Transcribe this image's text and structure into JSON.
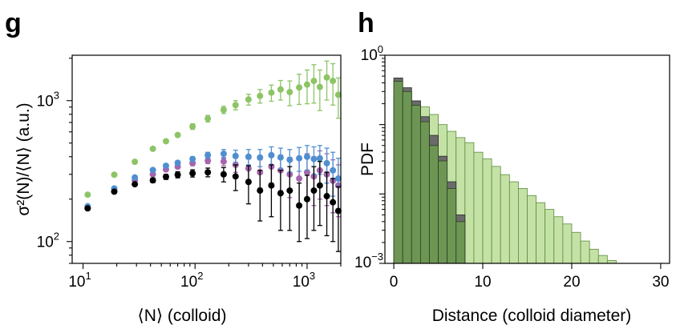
{
  "panels": {
    "g": {
      "letter": "g"
    },
    "h": {
      "letter": "h"
    }
  },
  "chart_data": [
    {
      "panel": "g",
      "type": "scatter",
      "xlabel": "⟨N⟩ (colloid)",
      "ylabel": "σ²(N)/⟨N⟩ (a.u.)",
      "xscale": "log",
      "yscale": "log",
      "xlim": [
        8,
        2000
      ],
      "ylim": [
        70,
        2100
      ],
      "x_ticks": [
        {
          "value": 10,
          "mantissa": "10",
          "exponent": "1"
        },
        {
          "value": 100,
          "mantissa": "10",
          "exponent": "2"
        },
        {
          "value": 1000,
          "mantissa": "10",
          "exponent": "3"
        }
      ],
      "y_ticks": [
        {
          "value": 100,
          "mantissa": "10",
          "exponent": "2"
        },
        {
          "value": 1000,
          "mantissa": "10",
          "exponent": "3"
        }
      ],
      "grid": false,
      "series": [
        {
          "color": "#8dc466",
          "points": [
            {
              "x": 11,
              "y": 215,
              "err": 0
            },
            {
              "x": 19,
              "y": 298,
              "err": 0
            },
            {
              "x": 29,
              "y": 368,
              "err": 0
            },
            {
              "x": 42,
              "y": 455,
              "err": 0
            },
            {
              "x": 55,
              "y": 515,
              "err": 0
            },
            {
              "x": 70,
              "y": 570,
              "err": 0
            },
            {
              "x": 95,
              "y": 655,
              "err": 30
            },
            {
              "x": 130,
              "y": 745,
              "err": 40
            },
            {
              "x": 180,
              "y": 860,
              "err": 50
            },
            {
              "x": 230,
              "y": 930,
              "err": 70
            },
            {
              "x": 300,
              "y": 1020,
              "err": 90
            },
            {
              "x": 380,
              "y": 1080,
              "err": 120
            },
            {
              "x": 480,
              "y": 1140,
              "err": 150
            },
            {
              "x": 580,
              "y": 1200,
              "err": 190
            },
            {
              "x": 700,
              "y": 1150,
              "err": 230
            },
            {
              "x": 850,
              "y": 1240,
              "err": 300
            },
            {
              "x": 1000,
              "y": 1300,
              "err": 350
            },
            {
              "x": 1150,
              "y": 1380,
              "err": 420
            },
            {
              "x": 1300,
              "y": 1250,
              "err": 400
            },
            {
              "x": 1500,
              "y": 1460,
              "err": 450
            },
            {
              "x": 1700,
              "y": 1380,
              "err": 450
            },
            {
              "x": 1900,
              "y": 1100,
              "err": 350
            }
          ]
        },
        {
          "color": "#a566ad",
          "points": [
            {
              "x": 11,
              "y": 173,
              "err": 0
            },
            {
              "x": 19,
              "y": 228,
              "err": 0
            },
            {
              "x": 29,
              "y": 272,
              "err": 0
            },
            {
              "x": 42,
              "y": 300,
              "err": 0
            },
            {
              "x": 55,
              "y": 325,
              "err": 10
            },
            {
              "x": 70,
              "y": 340,
              "err": 12
            },
            {
              "x": 95,
              "y": 360,
              "err": 15
            },
            {
              "x": 130,
              "y": 375,
              "err": 18
            },
            {
              "x": 180,
              "y": 370,
              "err": 25
            },
            {
              "x": 230,
              "y": 350,
              "err": 40
            },
            {
              "x": 300,
              "y": 330,
              "err": 55
            },
            {
              "x": 380,
              "y": 310,
              "err": 70
            },
            {
              "x": 480,
              "y": 340,
              "err": 80
            },
            {
              "x": 580,
              "y": 320,
              "err": 90
            },
            {
              "x": 700,
              "y": 300,
              "err": 95
            },
            {
              "x": 850,
              "y": 280,
              "err": 100
            },
            {
              "x": 1000,
              "y": 310,
              "err": 110
            },
            {
              "x": 1150,
              "y": 290,
              "err": 110
            },
            {
              "x": 1300,
              "y": 320,
              "err": 120
            },
            {
              "x": 1500,
              "y": 300,
              "err": 120
            },
            {
              "x": 1700,
              "y": 270,
              "err": 110
            },
            {
              "x": 1900,
              "y": 250,
              "err": 100
            }
          ]
        },
        {
          "color": "#4f8fd0",
          "points": [
            {
              "x": 11,
              "y": 178,
              "err": 0
            },
            {
              "x": 19,
              "y": 238,
              "err": 0
            },
            {
              "x": 29,
              "y": 285,
              "err": 0
            },
            {
              "x": 42,
              "y": 322,
              "err": 0
            },
            {
              "x": 55,
              "y": 345,
              "err": 10
            },
            {
              "x": 70,
              "y": 362,
              "err": 12
            },
            {
              "x": 95,
              "y": 385,
              "err": 15
            },
            {
              "x": 130,
              "y": 410,
              "err": 20
            },
            {
              "x": 180,
              "y": 420,
              "err": 30
            },
            {
              "x": 230,
              "y": 405,
              "err": 40
            },
            {
              "x": 300,
              "y": 400,
              "err": 50
            },
            {
              "x": 380,
              "y": 395,
              "err": 55
            },
            {
              "x": 480,
              "y": 410,
              "err": 60
            },
            {
              "x": 580,
              "y": 395,
              "err": 65
            },
            {
              "x": 700,
              "y": 380,
              "err": 70
            },
            {
              "x": 850,
              "y": 390,
              "err": 75
            },
            {
              "x": 1000,
              "y": 400,
              "err": 80
            },
            {
              "x": 1150,
              "y": 385,
              "err": 85
            },
            {
              "x": 1300,
              "y": 390,
              "err": 90
            },
            {
              "x": 1500,
              "y": 360,
              "err": 100
            },
            {
              "x": 1700,
              "y": 320,
              "err": 110
            },
            {
              "x": 1900,
              "y": 280,
              "err": 110
            }
          ]
        },
        {
          "color": "#000000",
          "points": [
            {
              "x": 11,
              "y": 172,
              "err": 0
            },
            {
              "x": 19,
              "y": 226,
              "err": 0
            },
            {
              "x": 29,
              "y": 255,
              "err": 0
            },
            {
              "x": 42,
              "y": 272,
              "err": 10
            },
            {
              "x": 55,
              "y": 288,
              "err": 12
            },
            {
              "x": 70,
              "y": 298,
              "err": 15
            },
            {
              "x": 95,
              "y": 305,
              "err": 18
            },
            {
              "x": 130,
              "y": 310,
              "err": 22
            },
            {
              "x": 180,
              "y": 300,
              "err": 35
            },
            {
              "x": 230,
              "y": 290,
              "err": 60
            },
            {
              "x": 300,
              "y": 265,
              "err": 80
            },
            {
              "x": 380,
              "y": 230,
              "err": 90
            },
            {
              "x": 480,
              "y": 250,
              "err": 100
            },
            {
              "x": 580,
              "y": 220,
              "err": 100
            },
            {
              "x": 700,
              "y": 230,
              "err": 110
            },
            {
              "x": 850,
              "y": 180,
              "err": 80
            },
            {
              "x": 1000,
              "y": 200,
              "err": 95
            },
            {
              "x": 1150,
              "y": 230,
              "err": 110
            },
            {
              "x": 1300,
              "y": 250,
              "err": 120
            },
            {
              "x": 1500,
              "y": 210,
              "err": 100
            },
            {
              "x": 1700,
              "y": 190,
              "err": 90
            },
            {
              "x": 1900,
              "y": 165,
              "err": 80
            }
          ]
        }
      ]
    },
    {
      "panel": "h",
      "type": "bar",
      "xlabel": "Distance (colloid diameter)",
      "ylabel": "PDF",
      "yscale": "log",
      "xlim": [
        -1,
        31
      ],
      "ylim": [
        0.001,
        1
      ],
      "x_ticks": [
        0,
        10,
        20,
        30
      ],
      "y_ticks": [
        {
          "value": 1,
          "mantissa": "10",
          "exponent": "0"
        },
        {
          "value": 0.001,
          "mantissa": "10",
          "exponent": "−3"
        }
      ],
      "bin_width": 1,
      "grid": false,
      "series": [
        {
          "color": "#c5e2a6",
          "edge": "#5b8a3f",
          "bins_start": [
            0,
            1,
            2,
            3,
            4,
            5,
            6,
            7,
            8,
            9,
            10,
            11,
            12,
            13,
            14,
            15,
            16,
            17,
            18,
            19,
            20,
            21,
            22,
            23,
            24
          ],
          "values": [
            0.25,
            0.3,
            0.22,
            0.18,
            0.14,
            0.1,
            0.08,
            0.065,
            0.055,
            0.04,
            0.032,
            0.025,
            0.019,
            0.015,
            0.012,
            0.0095,
            0.0075,
            0.006,
            0.0047,
            0.0037,
            0.0028,
            0.0021,
            0.0016,
            0.0013,
            0.0011
          ]
        },
        {
          "color": "#6b6b6b",
          "edge": "#2a2a2a",
          "bins_start": [
            0,
            1,
            2,
            3,
            4,
            5,
            6,
            7
          ],
          "values": [
            0.47,
            0.34,
            0.22,
            0.13,
            0.07,
            0.035,
            0.015,
            0.005
          ]
        },
        {
          "color": "#6d9654",
          "edge": "#2a3e20",
          "bins_start": [
            0,
            1,
            2,
            3,
            4,
            5,
            6,
            7
          ],
          "values": [
            0.42,
            0.3,
            0.19,
            0.11,
            0.05,
            0.03,
            0.012,
            0.004
          ]
        }
      ]
    }
  ]
}
